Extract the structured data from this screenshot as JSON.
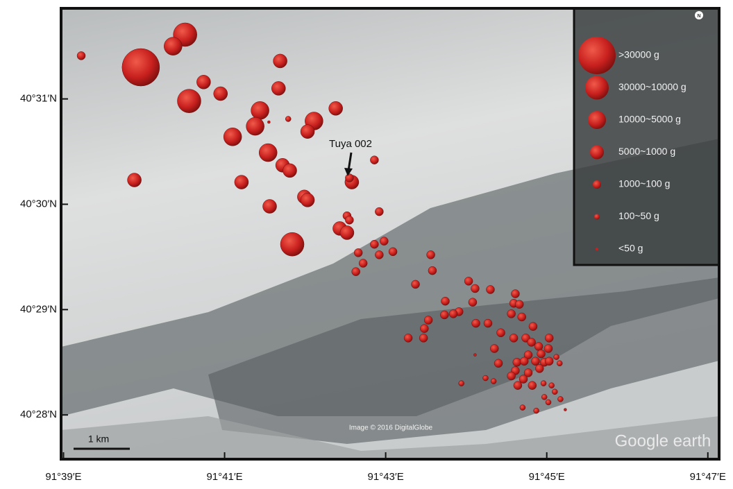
{
  "chart_data": {
    "type": "scatter",
    "xlim": [
      38.97,
      47.14
    ],
    "ylim": [
      27.58,
      31.86
    ],
    "xticks": [
      {
        "value": 39,
        "label": "91°39′E"
      },
      {
        "value": 41,
        "label": "91°41′E"
      },
      {
        "value": 43,
        "label": "91°43′E"
      },
      {
        "value": 45,
        "label": "91°45′E"
      },
      {
        "value": 47,
        "label": "91°47′E"
      }
    ],
    "yticks": [
      {
        "value": 28,
        "label": "40°28′N"
      },
      {
        "value": 29,
        "label": "40°29′N"
      },
      {
        "value": 30,
        "label": "40°30′N"
      },
      {
        "value": 31,
        "label": "40°31′N"
      }
    ],
    "color": "#c8201e",
    "annotation": "Tuya 002",
    "scale_bar": "1 km",
    "credit": "Image © 2016 DigitalGlobe",
    "watermark": "Google earth",
    "north": "N",
    "series": [
      {
        "name": ">30000 g",
        "x": [
          39.96
        ],
        "y": [
          31.3
        ]
      },
      {
        "name": "30000~10000 g",
        "x": [
          40.51,
          40.56,
          41.84
        ],
        "y": [
          31.61,
          30.98,
          29.62
        ]
      },
      {
        "name": "10000~5000 g",
        "x": [
          40.36,
          41.44,
          41.38,
          41.1,
          41.54,
          42.11
        ],
        "y": [
          31.5,
          30.89,
          30.74,
          30.64,
          30.49,
          30.79
        ]
      },
      {
        "name": "5000~1000 g",
        "x": [
          40.74,
          40.95,
          41.69,
          41.67,
          42.03,
          42.38,
          41.72,
          41.81,
          41.21,
          39.88,
          41.56,
          41.99,
          42.03,
          42.58,
          42.43,
          42.52
        ],
        "y": [
          31.16,
          31.05,
          31.36,
          31.1,
          30.69,
          30.91,
          30.37,
          30.32,
          30.21,
          30.23,
          29.98,
          30.07,
          30.04,
          30.21,
          29.77,
          29.73
        ]
      },
      {
        "name": "1000~100 g",
        "x": [
          39.22,
          42.55,
          42.86,
          42.52,
          42.55,
          42.92,
          42.66,
          42.72,
          42.63,
          42.86,
          42.92,
          42.98,
          43.09,
          43.56,
          43.58,
          43.37,
          44.03,
          44.11,
          44.3,
          43.74,
          44.08,
          43.91,
          43.84,
          43.73,
          44.61,
          44.59,
          44.66,
          43.53,
          43.48,
          43.28,
          43.47,
          44.12,
          44.27,
          44.56,
          44.69,
          44.83,
          44.43,
          44.59,
          44.74,
          45.03,
          44.35,
          44.81,
          44.9,
          44.77,
          44.93,
          45.02,
          44.4,
          44.63,
          44.72,
          44.86,
          44.97,
          45.03,
          44.61,
          44.77,
          44.91,
          44.56,
          44.71,
          44.82,
          44.64
        ],
        "y": [
          31.41,
          30.25,
          30.42,
          29.89,
          29.85,
          29.93,
          29.54,
          29.44,
          29.36,
          29.62,
          29.52,
          29.65,
          29.55,
          29.52,
          29.37,
          29.24,
          29.27,
          29.2,
          29.19,
          29.08,
          29.07,
          28.98,
          28.96,
          28.95,
          29.15,
          29.06,
          29.05,
          28.9,
          28.82,
          28.73,
          28.73,
          28.87,
          28.87,
          28.96,
          28.93,
          28.84,
          28.78,
          28.73,
          28.73,
          28.73,
          28.63,
          28.69,
          28.65,
          28.57,
          28.58,
          28.63,
          28.49,
          28.5,
          28.51,
          28.51,
          28.5,
          28.51,
          28.42,
          28.4,
          28.44,
          28.37,
          28.34,
          28.28,
          28.28
        ]
      },
      {
        "name": "100~50 g",
        "x": [
          41.79,
          45.12,
          45.16,
          44.24,
          44.34,
          44.96,
          45.06,
          43.94,
          45.1,
          44.97,
          45.17,
          45.02,
          44.7,
          44.87
        ],
        "y": [
          30.81,
          28.55,
          28.49,
          28.35,
          28.32,
          28.3,
          28.28,
          28.3,
          28.22,
          28.17,
          28.15,
          28.12,
          28.07,
          28.04
        ]
      },
      {
        "name": "<50 g",
        "x": [
          45.23,
          44.11,
          41.55
        ],
        "y": [
          28.05,
          28.57,
          30.78
        ]
      }
    ]
  }
}
